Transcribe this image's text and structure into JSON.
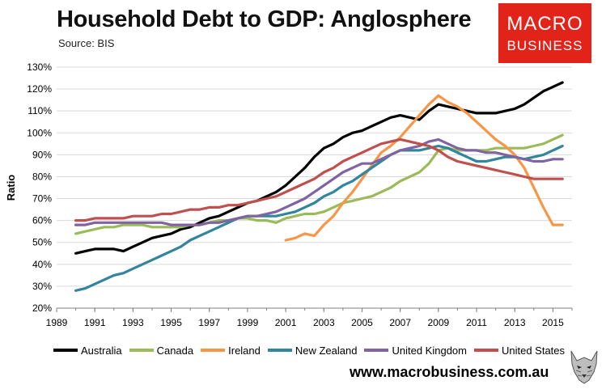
{
  "header": {
    "title": "Household Debt to GDP: Anglosphere",
    "source": "Source: BIS"
  },
  "logo": {
    "line1": "MACRO",
    "line2": "BUSINESS",
    "color": "#e2231a"
  },
  "website": "www.macrobusiness.com.au",
  "chart_data": {
    "type": "line",
    "title": "Household Debt to GDP: Anglosphere",
    "ylabel": "Ratio",
    "xlabel": "",
    "xlim": [
      1989,
      2016
    ],
    "ylim": [
      20,
      130
    ],
    "x_ticks": [
      "1989",
      "1991",
      "1993",
      "1995",
      "1997",
      "1999",
      "2001",
      "2003",
      "2005",
      "2007",
      "2009",
      "2011",
      "2013",
      "2015"
    ],
    "y_ticks": [
      "20%",
      "30%",
      "40%",
      "50%",
      "60%",
      "70%",
      "80%",
      "90%",
      "100%",
      "110%",
      "120%",
      "130%"
    ],
    "grid": "horizontal",
    "legend_position": "bottom",
    "series": [
      {
        "name": "Australia",
        "color": "#000000",
        "x": [
          1990,
          1990.5,
          1991,
          1991.5,
          1992,
          1992.5,
          1993,
          1993.5,
          1994,
          1994.5,
          1995,
          1995.5,
          1996,
          1996.5,
          1997,
          1997.5,
          1998,
          1998.5,
          1999,
          1999.5,
          2000,
          2000.5,
          2001,
          2001.5,
          2002,
          2002.5,
          2003,
          2003.5,
          2004,
          2004.5,
          2005,
          2005.5,
          2006,
          2006.5,
          2007,
          2007.5,
          2008,
          2008.5,
          2009,
          2009.5,
          2010,
          2010.5,
          2011,
          2011.5,
          2012,
          2012.5,
          2013,
          2013.5,
          2014,
          2014.5,
          2015,
          2015.5
        ],
        "y": [
          45,
          46,
          47,
          47,
          47,
          46,
          48,
          50,
          52,
          53,
          54,
          56,
          57,
          59,
          61,
          62,
          64,
          66,
          68,
          69,
          71,
          73,
          76,
          80,
          84,
          89,
          93,
          95,
          98,
          100,
          101,
          103,
          105,
          107,
          108,
          107,
          106,
          110,
          113,
          112,
          111,
          110,
          109,
          109,
          109,
          110,
          111,
          113,
          116,
          119,
          121,
          123
        ]
      },
      {
        "name": "Canada",
        "color": "#9bbb59",
        "x": [
          1990,
          1990.5,
          1991,
          1991.5,
          1992,
          1992.5,
          1993,
          1993.5,
          1994,
          1994.5,
          1995,
          1995.5,
          1996,
          1996.5,
          1997,
          1997.5,
          1998,
          1998.5,
          1999,
          1999.5,
          2000,
          2000.5,
          2001,
          2001.5,
          2002,
          2002.5,
          2003,
          2003.5,
          2004,
          2004.5,
          2005,
          2005.5,
          2006,
          2006.5,
          2007,
          2007.5,
          2008,
          2008.5,
          2009,
          2009.5,
          2010,
          2010.5,
          2011,
          2011.5,
          2012,
          2012.5,
          2013,
          2013.5,
          2014,
          2014.5,
          2015,
          2015.5
        ],
        "y": [
          54,
          55,
          56,
          57,
          57,
          58,
          58,
          58,
          57,
          57,
          57,
          57,
          58,
          58,
          59,
          60,
          60,
          61,
          61,
          60,
          60,
          59,
          61,
          62,
          63,
          63,
          64,
          66,
          68,
          69,
          70,
          71,
          73,
          75,
          78,
          80,
          82,
          86,
          92,
          93,
          92,
          92,
          92,
          92,
          93,
          93,
          93,
          93,
          94,
          95,
          97,
          99
        ]
      },
      {
        "name": "Ireland",
        "color": "#f79646",
        "x": [
          2001,
          2001.5,
          2002,
          2002.5,
          2003,
          2003.5,
          2004,
          2004.5,
          2005,
          2005.5,
          2006,
          2006.5,
          2007,
          2007.5,
          2008,
          2008.5,
          2009,
          2009.5,
          2010,
          2010.5,
          2011,
          2011.5,
          2012,
          2012.5,
          2013,
          2013.5,
          2014,
          2014.5,
          2015,
          2015.5
        ],
        "y": [
          51,
          52,
          54,
          53,
          58,
          62,
          68,
          73,
          79,
          85,
          91,
          94,
          98,
          103,
          108,
          113,
          117,
          114,
          112,
          109,
          105,
          101,
          97,
          94,
          90,
          84,
          75,
          66,
          58,
          58
        ]
      },
      {
        "name": "New Zealand",
        "color": "#31859c",
        "x": [
          1990,
          1990.5,
          1991,
          1991.5,
          1992,
          1992.5,
          1993,
          1993.5,
          1994,
          1994.5,
          1995,
          1995.5,
          1996,
          1996.5,
          1997,
          1997.5,
          1998,
          1998.5,
          1999,
          1999.5,
          2000,
          2000.5,
          2001,
          2001.5,
          2002,
          2002.5,
          2003,
          2003.5,
          2004,
          2004.5,
          2005,
          2005.5,
          2006,
          2006.5,
          2007,
          2007.5,
          2008,
          2008.5,
          2009,
          2009.5,
          2010,
          2010.5,
          2011,
          2011.5,
          2012,
          2012.5,
          2013,
          2013.5,
          2014,
          2014.5,
          2015,
          2015.5
        ],
        "y": [
          28,
          29,
          31,
          33,
          35,
          36,
          38,
          40,
          42,
          44,
          46,
          48,
          51,
          53,
          55,
          57,
          59,
          61,
          62,
          62,
          62,
          62,
          63,
          64,
          66,
          68,
          71,
          73,
          76,
          78,
          81,
          84,
          87,
          90,
          92,
          92,
          92,
          93,
          94,
          93,
          91,
          89,
          87,
          87,
          88,
          89,
          89,
          88,
          89,
          90,
          92,
          94
        ]
      },
      {
        "name": "United Kingdom",
        "color": "#8064a2",
        "x": [
          1990,
          1990.5,
          1991,
          1991.5,
          1992,
          1992.5,
          1993,
          1993.5,
          1994,
          1994.5,
          1995,
          1995.5,
          1996,
          1996.5,
          1997,
          1997.5,
          1998,
          1998.5,
          1999,
          1999.5,
          2000,
          2000.5,
          2001,
          2001.5,
          2002,
          2002.5,
          2003,
          2003.5,
          2004,
          2004.5,
          2005,
          2005.5,
          2006,
          2006.5,
          2007,
          2007.5,
          2008,
          2008.5,
          2009,
          2009.5,
          2010,
          2010.5,
          2011,
          2011.5,
          2012,
          2012.5,
          2013,
          2013.5,
          2014,
          2014.5,
          2015,
          2015.5
        ],
        "y": [
          58,
          58,
          59,
          59,
          59,
          59,
          59,
          59,
          59,
          59,
          58,
          58,
          58,
          58,
          59,
          59,
          60,
          61,
          62,
          62,
          63,
          64,
          66,
          68,
          70,
          73,
          76,
          79,
          82,
          84,
          86,
          86,
          88,
          90,
          92,
          93,
          94,
          96,
          97,
          95,
          93,
          92,
          92,
          91,
          91,
          90,
          89,
          88,
          87,
          87,
          88,
          88
        ]
      },
      {
        "name": "United States",
        "color": "#c0504d",
        "x": [
          1990,
          1990.5,
          1991,
          1991.5,
          1992,
          1992.5,
          1993,
          1993.5,
          1994,
          1994.5,
          1995,
          1995.5,
          1996,
          1996.5,
          1997,
          1997.5,
          1998,
          1998.5,
          1999,
          1999.5,
          2000,
          2000.5,
          2001,
          2001.5,
          2002,
          2002.5,
          2003,
          2003.5,
          2004,
          2004.5,
          2005,
          2005.5,
          2006,
          2006.5,
          2007,
          2007.5,
          2008,
          2008.5,
          2009,
          2009.5,
          2010,
          2010.5,
          2011,
          2011.5,
          2012,
          2012.5,
          2013,
          2013.5,
          2014,
          2014.5,
          2015,
          2015.5
        ],
        "y": [
          60,
          60,
          61,
          61,
          61,
          61,
          62,
          62,
          62,
          63,
          63,
          64,
          65,
          65,
          66,
          66,
          67,
          67,
          68,
          69,
          70,
          71,
          73,
          75,
          77,
          79,
          82,
          84,
          87,
          89,
          91,
          93,
          95,
          96,
          97,
          96,
          95,
          94,
          92,
          89,
          87,
          86,
          85,
          84,
          83,
          82,
          81,
          80,
          79,
          79,
          79,
          79
        ]
      }
    ]
  }
}
